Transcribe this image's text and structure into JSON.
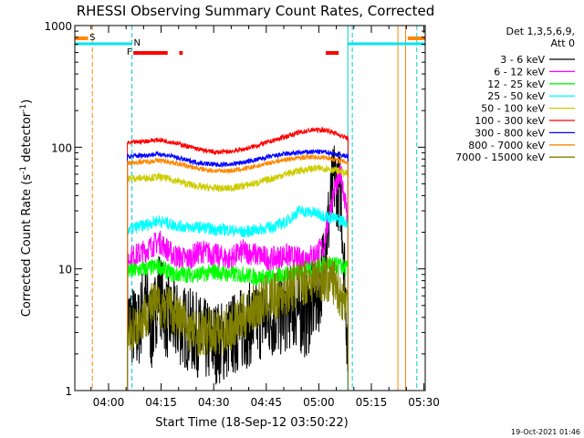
{
  "chart_data": {
    "type": "line",
    "title": "RHESSI Observing Summary Count Rates, Corrected",
    "xlabel": "Start Time (18-Sep-12 03:50:22)",
    "ylabel_prefix": "Corrected Count Rate (s",
    "ylabel_sup1": "-1",
    "ylabel_mid": " detector",
    "ylabel_sup2": "-1",
    "ylabel_suffix": ")",
    "x_unit": "minutes after 03:50:22",
    "xlim": [
      0,
      100
    ],
    "ylim": [
      1,
      1000
    ],
    "y_scale": "log",
    "x_tick_labels": [
      {
        "t": 9.63,
        "label": "04:00"
      },
      {
        "t": 24.63,
        "label": "04:15"
      },
      {
        "t": 39.63,
        "label": "04:30"
      },
      {
        "t": 54.63,
        "label": "04:45"
      },
      {
        "t": 69.63,
        "label": "05:00"
      },
      {
        "t": 84.63,
        "label": "05:15"
      },
      {
        "t": 99.63,
        "label": "05:30"
      }
    ],
    "x_minor_ticks": [
      4.63,
      14.63,
      19.63,
      29.63,
      34.63,
      44.63,
      49.63,
      59.63,
      64.63,
      74.63,
      79.63,
      89.63,
      94.63
    ],
    "y_tick_labels": [
      {
        "v": 1,
        "label": "1"
      },
      {
        "v": 10,
        "label": "10"
      },
      {
        "v": 100,
        "label": "100"
      },
      {
        "v": 1000,
        "label": "1000"
      }
    ],
    "legend_title_1": "Det 1,3,5,6,9,",
    "legend_title_2": "Att 0",
    "legend_position": "top-right",
    "series": [
      {
        "name": "3 - 6 keV",
        "color": "#000000",
        "points": [
          [
            15,
            4
          ],
          [
            18,
            3
          ],
          [
            20,
            6
          ],
          [
            22,
            3
          ],
          [
            24,
            7
          ],
          [
            26,
            4
          ],
          [
            30,
            3.5
          ],
          [
            34,
            3
          ],
          [
            38,
            2.5
          ],
          [
            42,
            2.5
          ],
          [
            46,
            3
          ],
          [
            50,
            3.5
          ],
          [
            54,
            4
          ],
          [
            58,
            4
          ],
          [
            62,
            5
          ],
          [
            66,
            4
          ],
          [
            70,
            7
          ],
          [
            72,
            20
          ],
          [
            74,
            55
          ],
          [
            76,
            40
          ],
          [
            78,
            2
          ]
        ]
      },
      {
        "name": "6 - 12 keV",
        "color": "#ff00ff",
        "points": [
          [
            15,
            12
          ],
          [
            20,
            14
          ],
          [
            24,
            17
          ],
          [
            28,
            13
          ],
          [
            32,
            12
          ],
          [
            36,
            14
          ],
          [
            40,
            13
          ],
          [
            44,
            12
          ],
          [
            48,
            14
          ],
          [
            52,
            13
          ],
          [
            56,
            12
          ],
          [
            60,
            13
          ],
          [
            64,
            12
          ],
          [
            68,
            13
          ],
          [
            71,
            15
          ],
          [
            74,
            45
          ],
          [
            76,
            60
          ],
          [
            78,
            25
          ]
        ]
      },
      {
        "name": "12 - 25 keV",
        "color": "#00ff00",
        "points": [
          [
            15,
            9.5
          ],
          [
            20,
            10
          ],
          [
            24,
            10.5
          ],
          [
            28,
            9
          ],
          [
            32,
            9
          ],
          [
            36,
            9
          ],
          [
            40,
            9.5
          ],
          [
            44,
            9
          ],
          [
            48,
            9
          ],
          [
            52,
            8.5
          ],
          [
            56,
            8.5
          ],
          [
            60,
            9
          ],
          [
            64,
            9.5
          ],
          [
            68,
            10
          ],
          [
            72,
            11
          ],
          [
            76,
            10.5
          ],
          [
            78,
            10
          ]
        ]
      },
      {
        "name": "25 - 50 keV",
        "color": "#00ffff",
        "points": [
          [
            15,
            21
          ],
          [
            20,
            23
          ],
          [
            24,
            25
          ],
          [
            28,
            23
          ],
          [
            32,
            22
          ],
          [
            36,
            22
          ],
          [
            40,
            21
          ],
          [
            44,
            21
          ],
          [
            48,
            20
          ],
          [
            52,
            21
          ],
          [
            56,
            22
          ],
          [
            60,
            24
          ],
          [
            64,
            30
          ],
          [
            68,
            29
          ],
          [
            72,
            27
          ],
          [
            76,
            25
          ],
          [
            78,
            24
          ]
        ]
      },
      {
        "name": "50 - 100 keV",
        "color": "#cccc00",
        "points": [
          [
            15,
            55
          ],
          [
            20,
            56
          ],
          [
            24,
            57
          ],
          [
            28,
            54
          ],
          [
            32,
            50
          ],
          [
            36,
            47
          ],
          [
            40,
            46
          ],
          [
            44,
            46
          ],
          [
            48,
            48
          ],
          [
            52,
            51
          ],
          [
            56,
            55
          ],
          [
            60,
            60
          ],
          [
            64,
            64
          ],
          [
            68,
            67
          ],
          [
            72,
            67
          ],
          [
            76,
            63
          ],
          [
            78,
            60
          ]
        ]
      },
      {
        "name": "100 - 300 keV",
        "color": "#ff0000",
        "points": [
          [
            15,
            108
          ],
          [
            20,
            112
          ],
          [
            24,
            115
          ],
          [
            28,
            110
          ],
          [
            32,
            102
          ],
          [
            36,
            95
          ],
          [
            40,
            91
          ],
          [
            44,
            92
          ],
          [
            48,
            96
          ],
          [
            52,
            103
          ],
          [
            56,
            112
          ],
          [
            60,
            122
          ],
          [
            64,
            132
          ],
          [
            68,
            139
          ],
          [
            72,
            138
          ],
          [
            76,
            125
          ],
          [
            78,
            118
          ]
        ]
      },
      {
        "name": "300 - 800 keV",
        "color": "#0000ff",
        "points": [
          [
            15,
            84
          ],
          [
            20,
            86
          ],
          [
            24,
            88
          ],
          [
            28,
            84
          ],
          [
            32,
            78
          ],
          [
            36,
            74
          ],
          [
            40,
            72
          ],
          [
            44,
            72
          ],
          [
            48,
            75
          ],
          [
            52,
            79
          ],
          [
            56,
            84
          ],
          [
            60,
            88
          ],
          [
            64,
            90
          ],
          [
            68,
            92
          ],
          [
            72,
            91
          ],
          [
            76,
            86
          ],
          [
            78,
            84
          ]
        ]
      },
      {
        "name": "800 - 7000 keV",
        "color": "#ff8800",
        "points": [
          [
            15,
            74
          ],
          [
            20,
            76
          ],
          [
            24,
            78
          ],
          [
            28,
            75
          ],
          [
            32,
            70
          ],
          [
            36,
            66
          ],
          [
            40,
            64
          ],
          [
            44,
            64
          ],
          [
            48,
            66
          ],
          [
            52,
            70
          ],
          [
            56,
            75
          ],
          [
            60,
            79
          ],
          [
            64,
            82
          ],
          [
            68,
            83
          ],
          [
            72,
            82
          ],
          [
            76,
            77
          ],
          [
            78,
            75
          ]
        ]
      },
      {
        "name": "7000 - 15000 keV",
        "color": "#808000",
        "points": [
          [
            15,
            3
          ],
          [
            18,
            3.5
          ],
          [
            22,
            5
          ],
          [
            26,
            5
          ],
          [
            30,
            4
          ],
          [
            34,
            3
          ],
          [
            38,
            3
          ],
          [
            42,
            3
          ],
          [
            46,
            3.5
          ],
          [
            50,
            4.5
          ],
          [
            54,
            5.5
          ],
          [
            58,
            6
          ],
          [
            62,
            7
          ],
          [
            66,
            8
          ],
          [
            70,
            8.5
          ],
          [
            74,
            8
          ],
          [
            76,
            6
          ],
          [
            78,
            5
          ]
        ]
      }
    ],
    "vertical_lines": [
      {
        "t": 5.0,
        "color": "#ff8800",
        "style": "dashed"
      },
      {
        "t": 16.3,
        "color": "#00cccc",
        "style": "dashed"
      },
      {
        "t": 77.9,
        "color": "#00cccc",
        "style": "solid"
      },
      {
        "t": 79.2,
        "color": "#00cccc",
        "style": "dashed"
      },
      {
        "t": 92.2,
        "color": "#ff8800",
        "style": "solid"
      },
      {
        "t": 94.4,
        "color": "#ff8800",
        "style": "solid"
      },
      {
        "t": 97.6,
        "color": "#00cccc",
        "style": "dashed"
      }
    ],
    "markers": {
      "saa": {
        "label": "S",
        "color": "#ff8800",
        "segments": [
          [
            0,
            3.8
          ],
          [
            95,
            100
          ]
        ]
      },
      "night": {
        "label": "N",
        "color": "#00e5ee",
        "segments": [
          [
            0,
            16.3
          ],
          [
            78.0,
            100
          ]
        ]
      },
      "flare": {
        "label": "F",
        "color": "#ff0000",
        "segments": [
          [
            16.7,
            26.5
          ],
          [
            29.8,
            30.8
          ],
          [
            71.6,
            75.3
          ]
        ]
      }
    }
  },
  "timestamp": "19-Oct-2021 01:46"
}
